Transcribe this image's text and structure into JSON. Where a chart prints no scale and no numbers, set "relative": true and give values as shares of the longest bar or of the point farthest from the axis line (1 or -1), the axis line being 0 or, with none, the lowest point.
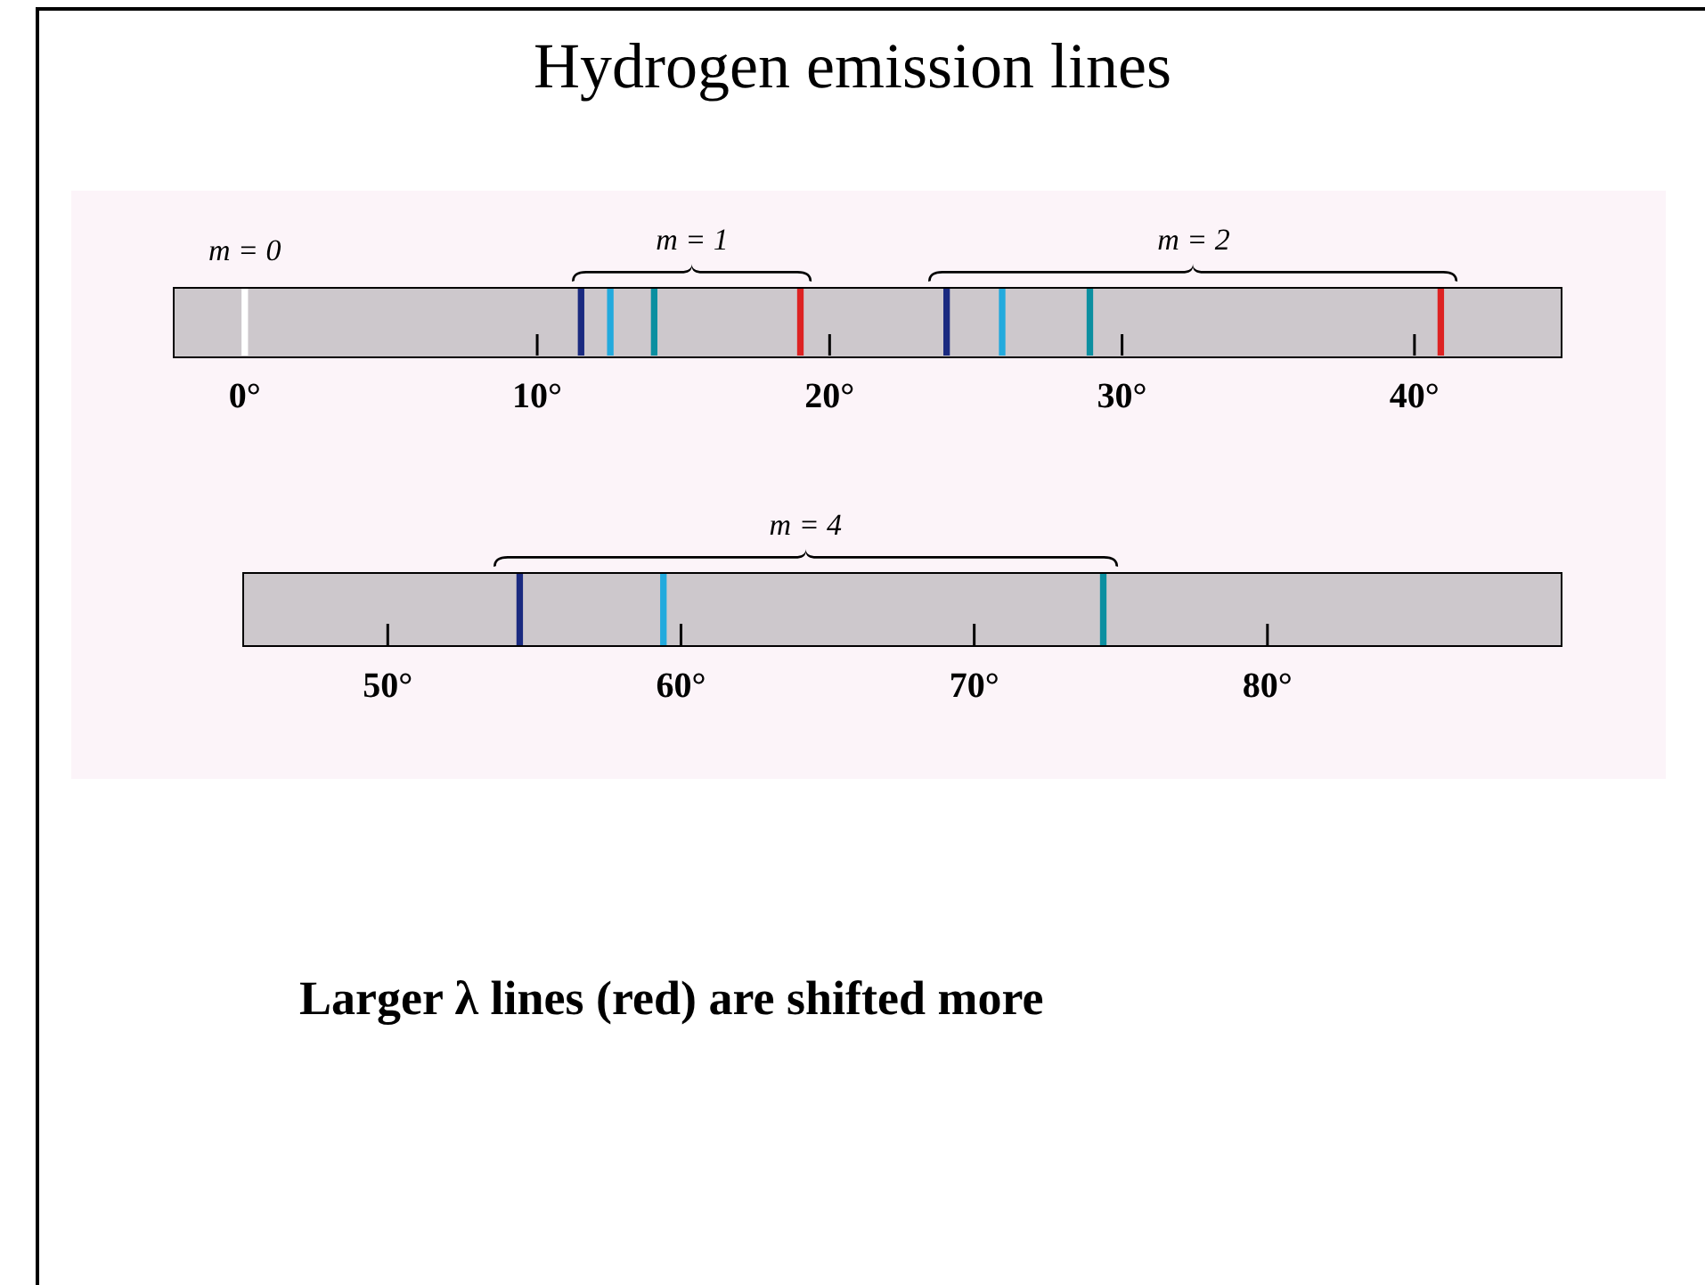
{
  "chart_data": [
    {
      "type": "bar",
      "relative": true,
      "title": "Hydrogen emission lines",
      "xlim": [
        -2.4,
        45
      ],
      "xticks": [
        {
          "value": 0,
          "label": "0°"
        },
        {
          "value": 10,
          "label": "10°"
        },
        {
          "value": 20,
          "label": "20°"
        },
        {
          "value": 30,
          "label": "30°"
        },
        {
          "value": 40,
          "label": "40°"
        }
      ],
      "x": [
        0,
        11.5,
        12.5,
        14,
        19,
        24,
        25.9,
        28.9,
        40.9
      ],
      "values": [
        1,
        1,
        1,
        1,
        1,
        1,
        1,
        1,
        1
      ],
      "colors": [
        "#ffffff",
        "#1a2a80",
        "#22aadd",
        "#0b8fa0",
        "#dd2222",
        "#1a2a80",
        "#22aadd",
        "#0b8fa0",
        "#dd2222"
      ],
      "annotations": [
        "m = 0",
        "m = 1",
        "m = 2"
      ]
    },
    {
      "type": "bar",
      "relative": true,
      "xlim": [
        45.1,
        90
      ],
      "xticks": [
        {
          "value": 50,
          "label": "50°"
        },
        {
          "value": 60,
          "label": "60°"
        },
        {
          "value": 70,
          "label": "70°"
        },
        {
          "value": 80,
          "label": "80°"
        }
      ],
      "x": [
        54.5,
        59.4,
        74.4
      ],
      "values": [
        1,
        1,
        1
      ],
      "colors": [
        "#1a2a80",
        "#22aadd",
        "#0b8fa0"
      ],
      "annotations": [
        "m = 4",
        "Larger λ lines (red) are shifted more"
      ]
    }
  ]
}
